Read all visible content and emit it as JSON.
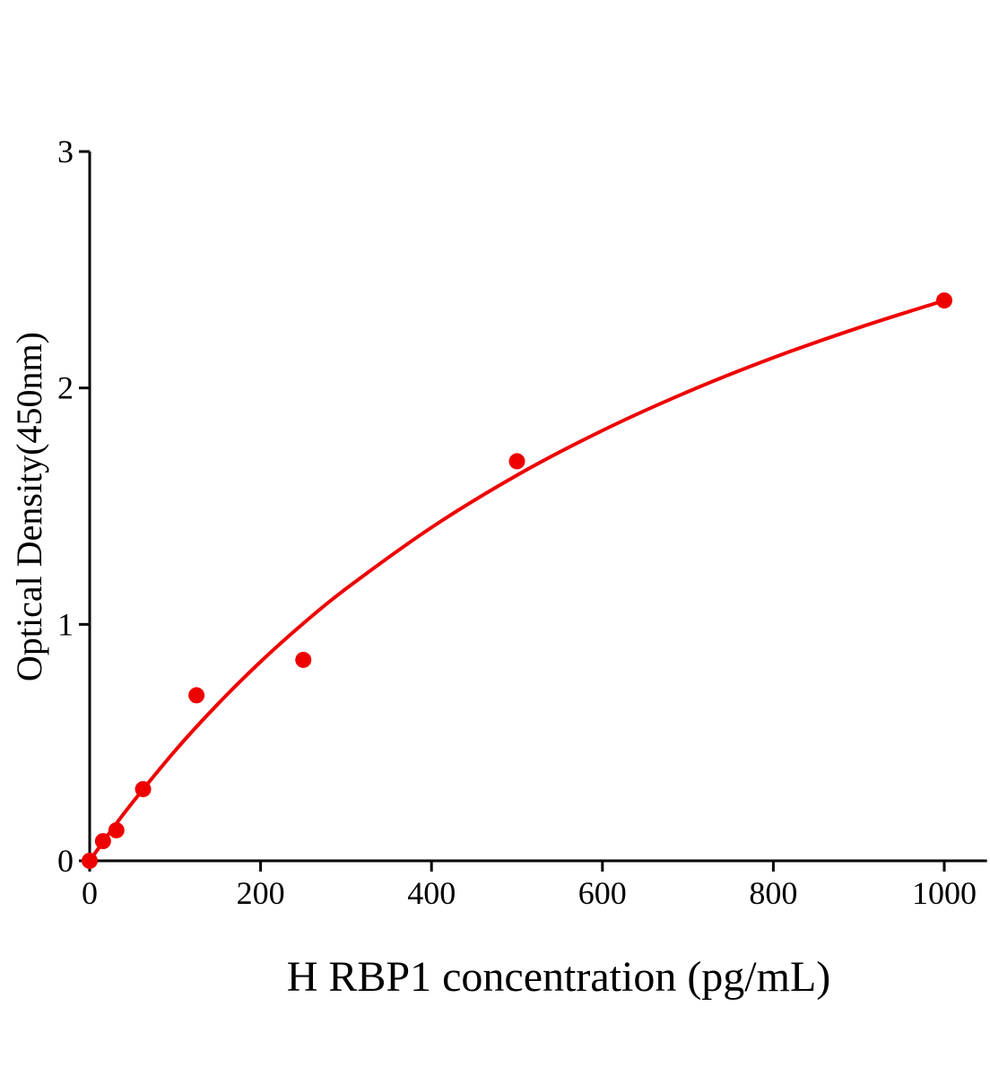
{
  "chart_data": {
    "type": "scatter",
    "title": "",
    "xlabel": "H RBP1 concentration (pg/mL)",
    "ylabel": "Optical Density(450nm)",
    "xlim": [
      0,
      1050
    ],
    "ylim": [
      0,
      3
    ],
    "xticks": [
      0,
      200,
      400,
      600,
      800,
      1000
    ],
    "yticks": [
      0,
      1,
      2,
      3
    ],
    "grid": false,
    "color": "#ee0000",
    "points": [
      {
        "x": 0,
        "y": 0.0
      },
      {
        "x": 15.6,
        "y": 0.083
      },
      {
        "x": 31.25,
        "y": 0.129
      },
      {
        "x": 62.5,
        "y": 0.303
      },
      {
        "x": 125,
        "y": 0.7
      },
      {
        "x": 250,
        "y": 0.85
      },
      {
        "x": 500,
        "y": 1.69
      },
      {
        "x": 1000,
        "y": 2.37
      }
    ],
    "fit_curve": [
      [
        0,
        0
      ],
      [
        25,
        0.127
      ],
      [
        50,
        0.246
      ],
      [
        100,
        0.466
      ],
      [
        150,
        0.663
      ],
      [
        200,
        0.842
      ],
      [
        250,
        1.004
      ],
      [
        300,
        1.151
      ],
      [
        400,
        1.41
      ],
      [
        500,
        1.631
      ],
      [
        600,
        1.82
      ],
      [
        700,
        1.984
      ],
      [
        800,
        2.128
      ],
      [
        900,
        2.255
      ],
      [
        1000,
        2.37
      ]
    ]
  }
}
